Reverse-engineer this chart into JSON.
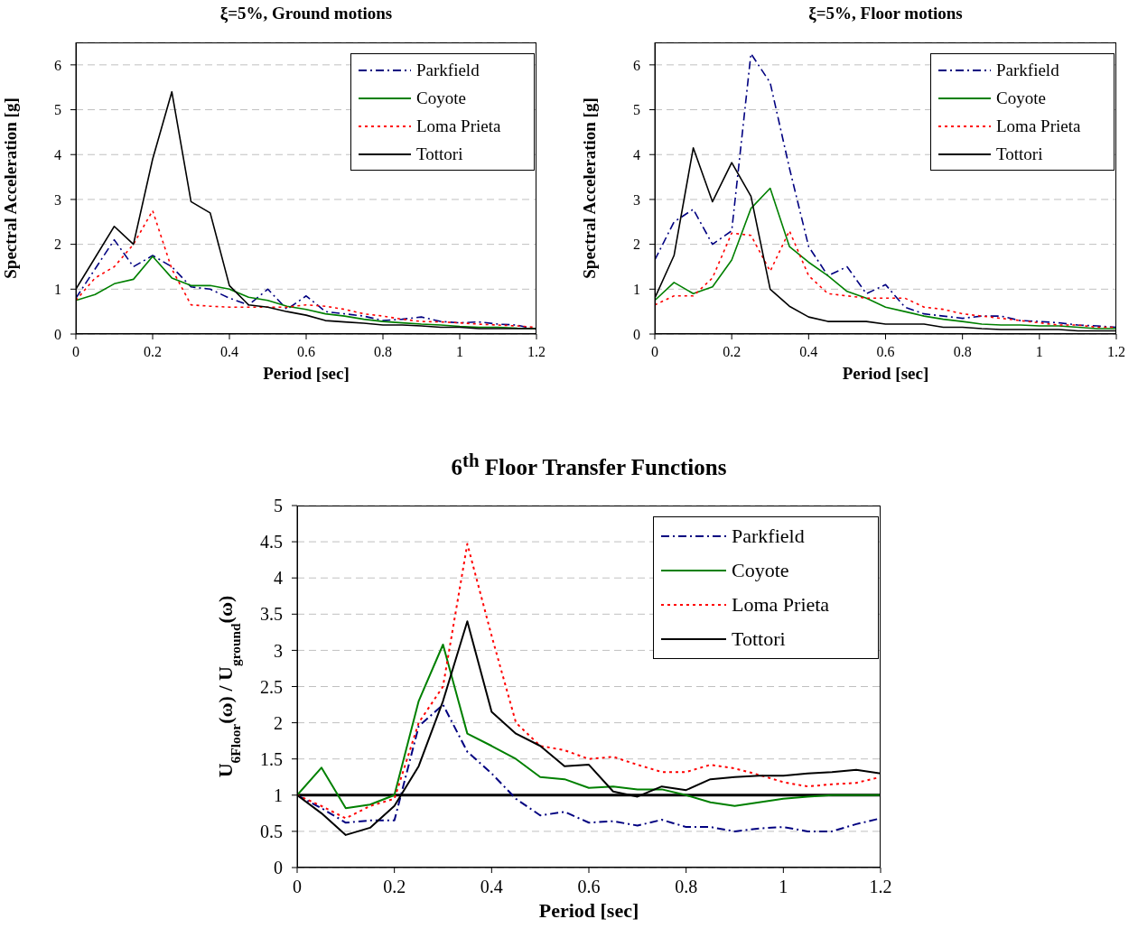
{
  "chart_data": [
    {
      "type": "line",
      "title": "ξ=5%, Ground motions",
      "xlabel": "Period [sec]",
      "ylabel": "Spectral Acceleration [g]",
      "x": [
        0,
        0.05,
        0.1,
        0.15,
        0.2,
        0.25,
        0.3,
        0.35,
        0.4,
        0.45,
        0.5,
        0.55,
        0.6,
        0.65,
        0.7,
        0.75,
        0.8,
        0.85,
        0.9,
        0.95,
        1,
        1.05,
        1.1,
        1.15,
        1.2
      ],
      "xlim": [
        0,
        1.2
      ],
      "xticks": [
        0,
        0.2,
        0.4,
        0.6,
        0.8,
        1,
        1.2
      ],
      "ylim": [
        0,
        6.5
      ],
      "yticks": [
        0,
        1,
        2,
        3,
        4,
        5,
        6
      ],
      "grid": "y",
      "legend": "top right",
      "marker": "none",
      "series": [
        {
          "name": "Parkfield",
          "color": "#000080",
          "line_style": "dashed",
          "values": [
            0.8,
            1.45,
            2.1,
            1.5,
            1.75,
            1.5,
            1.05,
            1.0,
            0.8,
            0.65,
            1.0,
            0.55,
            0.85,
            0.5,
            0.45,
            0.4,
            0.3,
            0.33,
            0.38,
            0.28,
            0.25,
            0.27,
            0.22,
            0.2,
            0.1
          ]
        },
        {
          "name": "Coyote",
          "color": "#008000",
          "line_style": "solid",
          "values": [
            0.75,
            0.88,
            1.12,
            1.22,
            1.73,
            1.25,
            1.08,
            1.08,
            1.0,
            0.82,
            0.75,
            0.62,
            0.55,
            0.45,
            0.4,
            0.33,
            0.28,
            0.25,
            0.22,
            0.2,
            0.17,
            0.15,
            0.15,
            0.13,
            0.12
          ]
        },
        {
          "name": "Loma Prieta",
          "color": "#ff0000",
          "line_style": "dotted",
          "values": [
            0.75,
            1.25,
            1.5,
            2.0,
            2.75,
            1.45,
            0.65,
            0.62,
            0.6,
            0.6,
            0.6,
            0.6,
            0.65,
            0.62,
            0.55,
            0.45,
            0.4,
            0.33,
            0.28,
            0.27,
            0.25,
            0.22,
            0.2,
            0.18,
            0.15
          ]
        },
        {
          "name": "Tottori",
          "color": "#000000",
          "line_style": "solid",
          "values": [
            1.0,
            1.7,
            2.4,
            2.0,
            3.9,
            5.4,
            2.95,
            2.7,
            1.08,
            0.65,
            0.6,
            0.5,
            0.42,
            0.3,
            0.27,
            0.24,
            0.2,
            0.2,
            0.18,
            0.15,
            0.15,
            0.12,
            0.12,
            0.12,
            0.12
          ]
        }
      ]
    },
    {
      "type": "line",
      "title": "ξ=5%, Floor motions",
      "xlabel": "Period [sec]",
      "ylabel": "Spectral Acceleration [g]",
      "x": [
        0,
        0.05,
        0.1,
        0.15,
        0.2,
        0.25,
        0.3,
        0.35,
        0.4,
        0.45,
        0.5,
        0.55,
        0.6,
        0.65,
        0.7,
        0.75,
        0.8,
        0.85,
        0.9,
        0.95,
        1,
        1.05,
        1.1,
        1.15,
        1.2
      ],
      "xlim": [
        0,
        1.2
      ],
      "xticks": [
        0,
        0.2,
        0.4,
        0.6,
        0.8,
        1,
        1.2
      ],
      "ylim": [
        0,
        6.5
      ],
      "yticks": [
        0,
        1,
        2,
        3,
        4,
        5,
        6
      ],
      "grid": "y",
      "legend": "top right",
      "marker": "none",
      "series": [
        {
          "name": "Parkfield",
          "color": "#000080",
          "line_style": "dashed",
          "values": [
            1.65,
            2.5,
            2.78,
            2.0,
            2.3,
            6.25,
            5.6,
            3.7,
            1.95,
            1.3,
            1.5,
            0.9,
            1.1,
            0.6,
            0.45,
            0.4,
            0.35,
            0.4,
            0.4,
            0.3,
            0.28,
            0.25,
            0.2,
            0.18,
            0.15
          ]
        },
        {
          "name": "Coyote",
          "color": "#008000",
          "line_style": "solid",
          "values": [
            0.75,
            1.15,
            0.9,
            1.05,
            1.65,
            2.8,
            3.25,
            1.95,
            1.6,
            1.3,
            0.95,
            0.8,
            0.6,
            0.5,
            0.4,
            0.33,
            0.28,
            0.22,
            0.2,
            0.2,
            0.18,
            0.18,
            0.15,
            0.12,
            0.12
          ]
        },
        {
          "name": "Loma Prieta",
          "color": "#ff0000",
          "line_style": "dotted",
          "values": [
            0.65,
            0.85,
            0.85,
            1.25,
            2.25,
            2.2,
            1.4,
            2.3,
            1.3,
            0.9,
            0.85,
            0.8,
            0.8,
            0.8,
            0.6,
            0.55,
            0.45,
            0.4,
            0.35,
            0.3,
            0.25,
            0.2,
            0.2,
            0.15,
            0.15
          ]
        },
        {
          "name": "Tottori",
          "color": "#000000",
          "line_style": "solid",
          "values": [
            0.8,
            1.75,
            4.15,
            2.95,
            3.82,
            3.07,
            1.0,
            0.62,
            0.38,
            0.28,
            0.28,
            0.28,
            0.22,
            0.22,
            0.22,
            0.15,
            0.15,
            0.12,
            0.1,
            0.1,
            0.1,
            0.1,
            0.07,
            0.07,
            0.07
          ]
        }
      ]
    },
    {
      "type": "line",
      "title": "6$^{th}$ Floor Transfer Functions",
      "xlabel": "Period [sec]",
      "ylabel": "U$_{6Floor}$(ω) / U$_{ground}$(ω)",
      "x": [
        0,
        0.05,
        0.1,
        0.15,
        0.2,
        0.25,
        0.3,
        0.35,
        0.4,
        0.45,
        0.5,
        0.55,
        0.6,
        0.65,
        0.7,
        0.75,
        0.8,
        0.85,
        0.9,
        0.95,
        1,
        1.05,
        1.1,
        1.15,
        1.2
      ],
      "xlim": [
        0,
        1.2
      ],
      "xticks": [
        0,
        0.2,
        0.4,
        0.6,
        0.8,
        1,
        1.2
      ],
      "ylim": [
        0,
        5
      ],
      "yticks": [
        0,
        0.5,
        1,
        1.5,
        2,
        2.5,
        3,
        3.5,
        4,
        4.5,
        5
      ],
      "grid": "y",
      "legend": "top right",
      "marker": "none",
      "ref_lines": [
        {
          "axis": "y",
          "value": 1,
          "color": "#000000",
          "line_style": "solid"
        }
      ],
      "series": [
        {
          "name": "Parkfield",
          "color": "#000080",
          "line_style": "dashed",
          "values": [
            1.0,
            0.82,
            0.62,
            0.65,
            0.65,
            1.95,
            2.25,
            1.6,
            1.3,
            0.95,
            0.72,
            0.77,
            0.62,
            0.64,
            0.58,
            0.66,
            0.56,
            0.56,
            0.5,
            0.54,
            0.56,
            0.5,
            0.5,
            0.6,
            0.68
          ]
        },
        {
          "name": "Coyote",
          "color": "#008000",
          "line_style": "solid",
          "values": [
            1.0,
            1.38,
            0.82,
            0.87,
            1.0,
            2.3,
            3.08,
            1.85,
            1.68,
            1.5,
            1.25,
            1.22,
            1.1,
            1.12,
            1.08,
            1.08,
            1.0,
            0.9,
            0.85,
            0.9,
            0.95,
            0.98,
            1.0,
            1.0,
            1.0
          ]
        },
        {
          "name": "Loma Prieta",
          "color": "#ff0000",
          "line_style": "dotted",
          "values": [
            1.0,
            0.85,
            0.68,
            0.85,
            0.95,
            2.0,
            2.5,
            4.47,
            3.2,
            2.0,
            1.68,
            1.62,
            1.5,
            1.53,
            1.42,
            1.32,
            1.32,
            1.42,
            1.37,
            1.28,
            1.18,
            1.12,
            1.15,
            1.17,
            1.25
          ]
        },
        {
          "name": "Tottori",
          "color": "#000000",
          "line_style": "solid",
          "values": [
            1.0,
            0.75,
            0.45,
            0.55,
            0.85,
            1.4,
            2.3,
            3.4,
            2.15,
            1.85,
            1.68,
            1.4,
            1.42,
            1.05,
            0.98,
            1.12,
            1.07,
            1.22,
            1.25,
            1.27,
            1.27,
            1.3,
            1.32,
            1.35,
            1.3
          ]
        }
      ]
    }
  ]
}
